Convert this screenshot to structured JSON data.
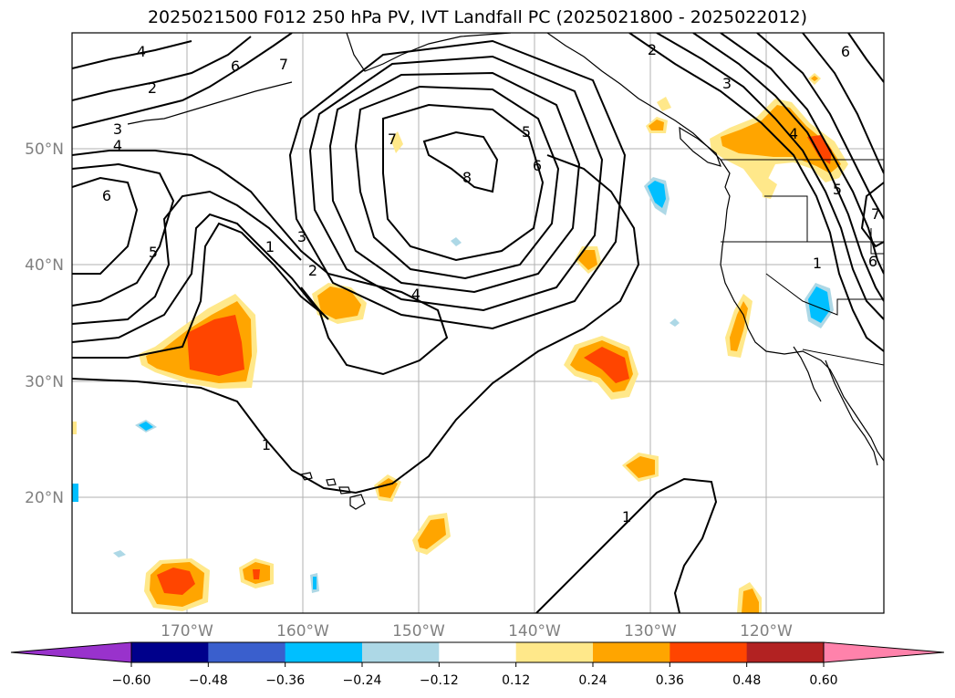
{
  "title": "2025021500 F012 250 hPa PV, IVT Landfall PC (2025021800 - 2025022012)",
  "map": {
    "lat_ticks": [
      "50°N",
      "40°N",
      "30°N",
      "20°N"
    ],
    "lon_ticks": [
      "170°W",
      "160°W",
      "150°W",
      "140°W",
      "130°W",
      "120°W"
    ],
    "extent": {
      "lon": [
        -180,
        -110
      ],
      "lat": [
        10,
        60
      ]
    },
    "gridlines": true,
    "contour_field": "250 hPa PV",
    "shaded_field": "IVT Landfall PC"
  },
  "contour_labels": [
    "4",
    "6",
    "7",
    "2",
    "3",
    "4",
    "6",
    "5",
    "1",
    "3",
    "2",
    "4",
    "8",
    "5",
    "6",
    "7",
    "1",
    "2",
    "3",
    "4",
    "5",
    "6",
    "7",
    "1",
    "1",
    "6"
  ],
  "colorbar": {
    "ticks": [
      "−0.60",
      "−0.48",
      "−0.36",
      "−0.24",
      "−0.12",
      "0.12",
      "0.24",
      "0.36",
      "0.48",
      "0.60"
    ],
    "boundaries": [
      -0.6,
      -0.48,
      -0.36,
      -0.24,
      -0.12,
      0.12,
      0.24,
      0.36,
      0.48,
      0.6
    ],
    "colors": [
      "#9932cc",
      "#00008b",
      "#3a5fcd",
      "#00bfff",
      "#add8e6",
      "#ffffff",
      "#ffe88a",
      "#ffa500",
      "#ff4500",
      "#b22222",
      "#ff82ab"
    ],
    "extend": "both"
  }
}
